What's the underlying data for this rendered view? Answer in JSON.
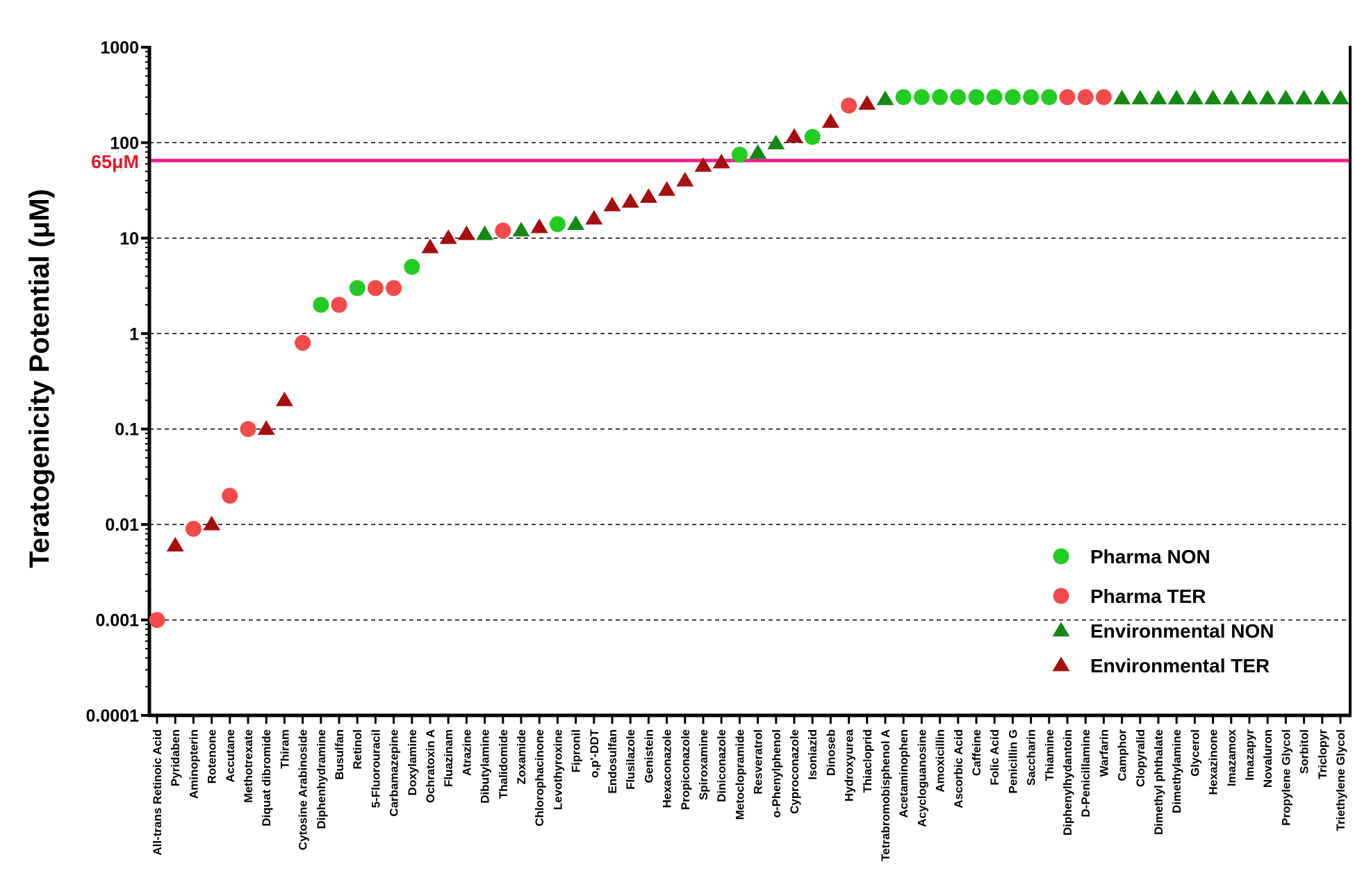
{
  "chart_data": {
    "type": "scatter",
    "title": "",
    "xlabel": "",
    "ylabel": "Teratogenicity  Potential (μM)",
    "yscale": "log",
    "ylim": [
      0.0001,
      1000
    ],
    "yticks": [
      "0.0001",
      "0.001",
      "0.01",
      "0.1",
      "1",
      "10",
      "100",
      "1000"
    ],
    "grid": "horizontal dashed",
    "legend_position": "bottom-right",
    "reference_line": {
      "label": "65μM",
      "value": 65,
      "color": "#ee1f8d"
    },
    "series": [
      {
        "name": "Pharma NON",
        "marker": "circle",
        "color": "#22cc22"
      },
      {
        "name": "Pharma TER",
        "marker": "circle",
        "color": "#f24a4a"
      },
      {
        "name": "Environmental NON",
        "marker": "triangle",
        "color": "#148a14"
      },
      {
        "name": "Environmental TER",
        "marker": "triangle",
        "color": "#a50f0f"
      }
    ],
    "points": [
      {
        "x": "All-trans Retinoic Acid",
        "y": 0.001,
        "series": 1
      },
      {
        "x": "Pyridaben",
        "y": 0.006,
        "series": 3
      },
      {
        "x": "Aminopterin",
        "y": 0.009,
        "series": 1
      },
      {
        "x": "Rotenone",
        "y": 0.01,
        "series": 3
      },
      {
        "x": "Accutane",
        "y": 0.02,
        "series": 1
      },
      {
        "x": "Methotrexate",
        "y": 0.1,
        "series": 1
      },
      {
        "x": "Diquat dibromide",
        "y": 0.1,
        "series": 3
      },
      {
        "x": "Thiram",
        "y": 0.2,
        "series": 3
      },
      {
        "x": "Cytosine Arabinoside",
        "y": 0.8,
        "series": 1
      },
      {
        "x": "Diphenhydramine",
        "y": 2,
        "series": 0
      },
      {
        "x": "Busulfan",
        "y": 2,
        "series": 1
      },
      {
        "x": "Retinol",
        "y": 3,
        "series": 0
      },
      {
        "x": "5-Fluorouracil",
        "y": 3,
        "series": 1
      },
      {
        "x": "Carbamazepine",
        "y": 3,
        "series": 1
      },
      {
        "x": "Doxylamine",
        "y": 5,
        "series": 0
      },
      {
        "x": "Ochratoxin A",
        "y": 8,
        "series": 3
      },
      {
        "x": "Fluazinam",
        "y": 10,
        "series": 3
      },
      {
        "x": "Atrazine",
        "y": 11,
        "series": 3
      },
      {
        "x": "Dibutylamine",
        "y": 11,
        "series": 2
      },
      {
        "x": "Thalidomide",
        "y": 12,
        "series": 1
      },
      {
        "x": "Zoxamide",
        "y": 12,
        "series": 2
      },
      {
        "x": "Chlorophacinone",
        "y": 13,
        "series": 3
      },
      {
        "x": "Levothyroxine",
        "y": 14,
        "series": 0
      },
      {
        "x": "Fipronil",
        "y": 14,
        "series": 2
      },
      {
        "x": "o,p'-DDT",
        "y": 16,
        "series": 3
      },
      {
        "x": "Endosulfan",
        "y": 22,
        "series": 3
      },
      {
        "x": "Flusilazole",
        "y": 24,
        "series": 3
      },
      {
        "x": "Genistein",
        "y": 27,
        "series": 3
      },
      {
        "x": "Hexaconazole",
        "y": 32,
        "series": 3
      },
      {
        "x": "Propiconazole",
        "y": 40,
        "series": 3
      },
      {
        "x": "Spiroxamine",
        "y": 57,
        "series": 3
      },
      {
        "x": "Diniconazole",
        "y": 62,
        "series": 3
      },
      {
        "x": "Metoclopramide",
        "y": 75,
        "series": 0
      },
      {
        "x": "Resveratrol",
        "y": 78,
        "series": 2
      },
      {
        "x": "o-Phenylphenol",
        "y": 98,
        "series": 2
      },
      {
        "x": "Cyproconazole",
        "y": 115,
        "series": 3
      },
      {
        "x": "Isoniazid",
        "y": 115,
        "series": 0
      },
      {
        "x": "Dinoseb",
        "y": 165,
        "series": 3
      },
      {
        "x": "Hydroxyurea",
        "y": 245,
        "series": 1
      },
      {
        "x": "Thiacloprid",
        "y": 255,
        "series": 3
      },
      {
        "x": "Tetrabromobisphenol A",
        "y": 285,
        "series": 2
      },
      {
        "x": "Acetaminophen",
        "y": 300,
        "series": 0
      },
      {
        "x": "Acycloguanosine",
        "y": 300,
        "series": 0
      },
      {
        "x": "Amoxicillin",
        "y": 300,
        "series": 0
      },
      {
        "x": "Ascorbic Acid",
        "y": 300,
        "series": 0
      },
      {
        "x": "Caffeine",
        "y": 300,
        "series": 0
      },
      {
        "x": "Folic Acid",
        "y": 300,
        "series": 0
      },
      {
        "x": "Penicillin G",
        "y": 300,
        "series": 0
      },
      {
        "x": "Saccharin",
        "y": 300,
        "series": 0
      },
      {
        "x": "Thiamine",
        "y": 300,
        "series": 0
      },
      {
        "x": "Diphenylhydantoin",
        "y": 300,
        "series": 1
      },
      {
        "x": "D-Penicillamine",
        "y": 300,
        "series": 1
      },
      {
        "x": "Warfarin",
        "y": 300,
        "series": 1
      },
      {
        "x": "Camphor",
        "y": 290,
        "series": 2
      },
      {
        "x": "Clopyralid",
        "y": 290,
        "series": 2
      },
      {
        "x": "Dimethyl phthalate",
        "y": 290,
        "series": 2
      },
      {
        "x": "Dimethylamine",
        "y": 290,
        "series": 2
      },
      {
        "x": "Glycerol",
        "y": 290,
        "series": 2
      },
      {
        "x": "Hexazinone",
        "y": 290,
        "series": 2
      },
      {
        "x": "Imazamox",
        "y": 290,
        "series": 2
      },
      {
        "x": "Imazapyr",
        "y": 290,
        "series": 2
      },
      {
        "x": "Novaluron",
        "y": 290,
        "series": 2
      },
      {
        "x": "Propylene Glycol",
        "y": 290,
        "series": 2
      },
      {
        "x": "Sorbitol",
        "y": 290,
        "series": 2
      },
      {
        "x": "Triclopyr",
        "y": 290,
        "series": 2
      },
      {
        "x": "Triethylene Glycol",
        "y": 290,
        "series": 2
      }
    ]
  }
}
